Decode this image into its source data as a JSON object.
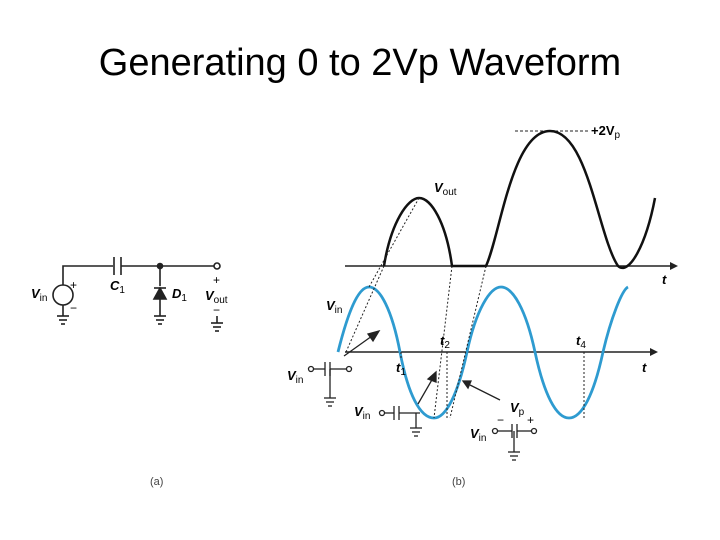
{
  "slide": {
    "title": "Generating 0 to 2Vp Waveform"
  },
  "colors": {
    "vin_wave": "#2e9bd0",
    "vout_wave": "#111111",
    "wire": "#222222"
  },
  "circuit_a": {
    "caption": "(a)",
    "labels": {
      "vin": "V",
      "vin_sub": "in",
      "c1": "C",
      "c1_sub": "1",
      "d1": "D",
      "d1_sub": "1",
      "vout": "V",
      "vout_sub": "out",
      "plus_src": "+",
      "minus_src": "−",
      "plus_out": "+",
      "minus_out": "−"
    }
  },
  "waveform_b": {
    "caption": "(b)",
    "labels": {
      "vout": "V",
      "vout_sub": "out",
      "two_vp": "+2V",
      "two_vp_sub": "p",
      "t_top": "t",
      "vin": "V",
      "vin_sub": "in",
      "t_bottom": "t",
      "t1": "t",
      "t1_sub": "1",
      "t2": "t",
      "t2_sub": "2",
      "t4": "t",
      "t4_sub": "4",
      "inset1_vin": "V",
      "inset1_vin_sub": "in",
      "inset2_vin": "V",
      "inset2_vin_sub": "in",
      "inset3_vin": "V",
      "inset3_vin_sub": "in",
      "inset3_vp": "V",
      "inset3_vp_sub": "p",
      "inset3_minus": "−",
      "inset3_plus": "+"
    }
  }
}
